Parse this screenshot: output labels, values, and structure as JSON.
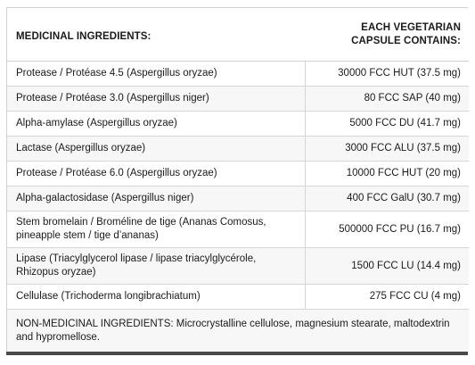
{
  "table": {
    "header": {
      "ingredients": "MEDICINAL INGREDIENTS:",
      "amount": "EACH VEGETARIAN CAPSULE CONTAINS:"
    },
    "rows": [
      {
        "name": "Protease / Protéase 4.5 (Aspergillus oryzae)",
        "amount": "30000 FCC HUT (37.5 mg)"
      },
      {
        "name": "Protease / Protéase 3.0 (Aspergillus niger)",
        "amount": "80 FCC SAP (40 mg)"
      },
      {
        "name": "Alpha-amylase (Aspergillus oryzae)",
        "amount": "5000 FCC DU (41.7 mg)"
      },
      {
        "name": "Lactase (Aspergillus oryzae)",
        "amount": "3000 FCC ALU (37.5 mg)"
      },
      {
        "name": "Protease / Protéase 6.0 (Aspergillus oryzae)",
        "amount": "10000 FCC HUT (20 mg)"
      },
      {
        "name": "Alpha-galactosidase (Aspergillus niger)",
        "amount": "400 FCC GalU (30.7 mg)"
      },
      {
        "name": "Stem bromelain / Broméline de tige (Ananas Comosus, pineapple stem / tige d’ananas)",
        "amount": "500000 FCC PU (16.7 mg)"
      },
      {
        "name": "Lipase (Triacylglycerol lipase / lipase triacylglycérole, Rhizopus oryzae)",
        "amount": "1500 FCC LU (14.4 mg)"
      },
      {
        "name": "Cellulase (Trichoderma longibrachiatum)",
        "amount": "275 FCC CU (4 mg)"
      }
    ],
    "footer": "NON-MEDICINAL INGREDIENTS: Microcrystalline cellulose, magnesium stearate, maltodextrin and hypromellose."
  }
}
